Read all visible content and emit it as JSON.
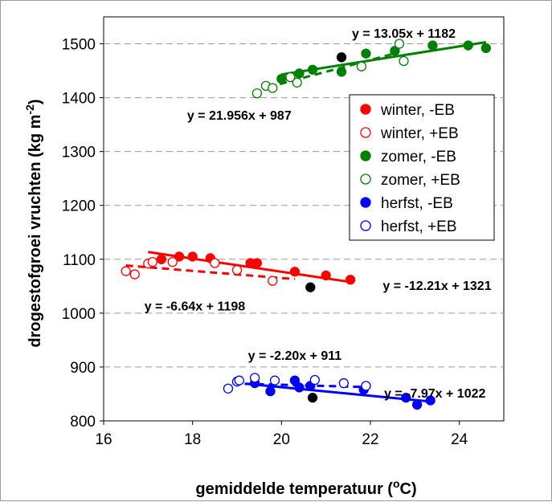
{
  "chart_data": {
    "type": "scatter",
    "xlabel_main": "gemiddelde temperatuur (",
    "xlabel_sup": "o",
    "xlabel_end": "C)",
    "ylabel_main": "drogestofgroei vruchten (kg m",
    "ylabel_sup": "-2",
    "ylabel_end": ")",
    "xlim": [
      16,
      25
    ],
    "ylim": [
      800,
      1550
    ],
    "xticks": [
      "16",
      "18",
      "20",
      "22",
      "24"
    ],
    "yticks": [
      "800",
      "900",
      "1000",
      "1100",
      "1200",
      "1300",
      "1400",
      "1500"
    ],
    "grid": "horizontal dashed",
    "legend_position": "right",
    "legend": [
      {
        "label": "winter, -EB",
        "color": "#ff0000",
        "filled": true
      },
      {
        "label": "winter, +EB",
        "color": "#ff0000",
        "filled": false
      },
      {
        "label": "zomer, -EB",
        "color": "#008000",
        "filled": true
      },
      {
        "label": "zomer, +EB",
        "color": "#008000",
        "filled": false
      },
      {
        "label": "herfst, -EB",
        "color": "#0000ff",
        "filled": true
      },
      {
        "label": "herfst, +EB",
        "color": "#0000ff",
        "filled": false
      }
    ],
    "series": [
      {
        "name": "winter, -EB",
        "color": "#ff0000",
        "filled": true,
        "points": [
          [
            17.3,
            1100
          ],
          [
            17.7,
            1105
          ],
          [
            18.0,
            1105
          ],
          [
            18.4,
            1102
          ],
          [
            19.3,
            1093
          ],
          [
            19.45,
            1093
          ],
          [
            20.3,
            1077
          ],
          [
            21.0,
            1070
          ],
          [
            21.55,
            1062
          ]
        ],
        "fit": {
          "x": [
            17.0,
            21.55
          ],
          "slope": -12.21,
          "intercept": 1321,
          "dashed": false
        }
      },
      {
        "name": "winter, +EB",
        "color": "#ff0000",
        "filled": false,
        "points": [
          [
            16.5,
            1078
          ],
          [
            16.7,
            1072
          ],
          [
            17.0,
            1092
          ],
          [
            17.1,
            1095
          ],
          [
            17.55,
            1095
          ],
          [
            18.5,
            1093
          ],
          [
            19.0,
            1080
          ],
          [
            19.8,
            1060
          ]
        ],
        "fit": {
          "x": [
            16.5,
            20.3
          ],
          "slope": -6.64,
          "intercept": 1198,
          "dashed": true
        }
      },
      {
        "name": "zomer, -EB",
        "color": "#008000",
        "filled": true,
        "points": [
          [
            20.0,
            1435
          ],
          [
            20.4,
            1445
          ],
          [
            20.7,
            1452
          ],
          [
            21.35,
            1448
          ],
          [
            21.9,
            1482
          ],
          [
            22.55,
            1487
          ],
          [
            23.4,
            1497
          ],
          [
            24.2,
            1497
          ],
          [
            24.6,
            1492
          ]
        ],
        "fit": {
          "x": [
            20.0,
            24.6
          ],
          "slope": 13.05,
          "intercept": 1182,
          "dashed": false
        }
      },
      {
        "name": "zomer, +EB",
        "color": "#008000",
        "filled": false,
        "points": [
          [
            19.45,
            1408
          ],
          [
            19.65,
            1422
          ],
          [
            19.8,
            1418
          ],
          [
            20.2,
            1438
          ],
          [
            20.35,
            1428
          ],
          [
            21.8,
            1458
          ],
          [
            22.65,
            1500
          ],
          [
            22.75,
            1468
          ]
        ],
        "fit": {
          "x": [
            19.7,
            22.5
          ],
          "slope": 21.956,
          "intercept": 987,
          "dashed": true
        }
      },
      {
        "name": "herfst, -EB",
        "color": "#0000ff",
        "filled": true,
        "points": [
          [
            19.4,
            870
          ],
          [
            19.75,
            855
          ],
          [
            20.3,
            875
          ],
          [
            20.4,
            862
          ],
          [
            20.65,
            865
          ],
          [
            21.85,
            858
          ],
          [
            22.8,
            843
          ],
          [
            23.05,
            830
          ],
          [
            23.35,
            838
          ]
        ],
        "fit": {
          "x": [
            19.2,
            23.4
          ],
          "slope": -7.97,
          "intercept": 1022,
          "dashed": false
        }
      },
      {
        "name": "herfst, +EB",
        "color": "#0000ff",
        "filled": false,
        "points": [
          [
            18.8,
            860
          ],
          [
            19.0,
            873
          ],
          [
            19.05,
            875
          ],
          [
            19.4,
            880
          ],
          [
            19.85,
            875
          ],
          [
            20.75,
            876
          ],
          [
            21.4,
            870
          ],
          [
            21.9,
            865
          ]
        ],
        "fit": {
          "x": [
            18.9,
            22.0
          ],
          "slope": -2.2,
          "intercept": 911,
          "dashed": true
        }
      },
      {
        "name": "",
        "color": "#000000",
        "filled": true,
        "points": [
          [
            21.35,
            1475
          ],
          [
            20.65,
            1048
          ],
          [
            20.7,
            843
          ]
        ]
      }
    ],
    "equations": [
      {
        "text": "y = 13.05x + 1182",
        "x": 22.75,
        "y": 1520
      },
      {
        "text": "y = 21.956x + 987",
        "x": 19.05,
        "y": 1368
      },
      {
        "text": "y = -12.21x + 1321",
        "x": 23.5,
        "y": 1052
      },
      {
        "text": "y = -6.64x + 1198",
        "x": 18.05,
        "y": 1014
      },
      {
        "text": "y = -2.20x + 911",
        "x": 20.3,
        "y": 922
      },
      {
        "text": "y = -7.97x + 1022",
        "x": 23.45,
        "y": 852
      }
    ]
  }
}
